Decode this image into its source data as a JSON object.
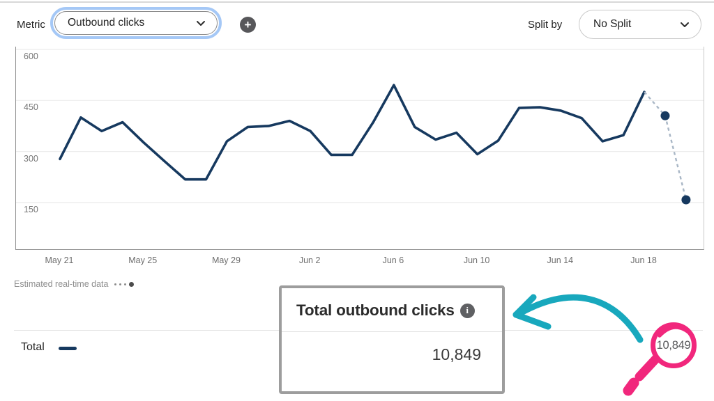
{
  "toolbar": {
    "metric_label": "Metric",
    "metric_dropdown": {
      "value": "Outbound clicks"
    },
    "add_metric_icon_glyph": "+",
    "split_by_label": "Split by",
    "split_dropdown": {
      "value": "No Split"
    }
  },
  "chart_data": {
    "type": "line",
    "x_tick_labels": [
      "May 21",
      "May 25",
      "May 29",
      "Jun 2",
      "Jun 6",
      "Jun 10",
      "Jun 14",
      "Jun 18"
    ],
    "y_ticks": [
      600,
      450,
      300,
      150
    ],
    "ylim": [
      0,
      600
    ],
    "grid": true,
    "legend_position": "bottom-left",
    "dates": [
      "May 21",
      "May 22",
      "May 23",
      "May 24",
      "May 25",
      "May 26",
      "May 27",
      "May 28",
      "May 29",
      "May 30",
      "May 31",
      "Jun 1",
      "Jun 2",
      "Jun 3",
      "Jun 4",
      "Jun 5",
      "Jun 6",
      "Jun 7",
      "Jun 8",
      "Jun 9",
      "Jun 10",
      "Jun 11",
      "Jun 12",
      "Jun 13",
      "Jun 14",
      "Jun 15",
      "Jun 16",
      "Jun 17",
      "Jun 18",
      "Jun 19",
      "Jun 20"
    ],
    "series": [
      {
        "name": "Total",
        "color": "#16395F",
        "style": "solid",
        "values": [
          278,
          400,
          360,
          386,
          327,
          272,
          218,
          218,
          330,
          372,
          375,
          390,
          360,
          290,
          290,
          385,
          495,
          372,
          335,
          355,
          292,
          332,
          428,
          430,
          420,
          398,
          330,
          348,
          475
        ]
      },
      {
        "name": "Estimated real-time data",
        "color": "#A9B7C6",
        "style": "dashed",
        "start_index": 28,
        "values": [
          475,
          405,
          158
        ]
      }
    ]
  },
  "estimated_legend": {
    "label": "Estimated real-time data"
  },
  "totals": {
    "label": "Total"
  },
  "callout": {
    "title": "Total outbound clicks",
    "info_icon_glyph": "i",
    "value": "10,849"
  },
  "magnifier": {
    "value": "10,849"
  },
  "colors": {
    "navy": "#16395F",
    "pink": "#F1277C",
    "teal": "#18A8BD",
    "focus_ring_blue": "#A5C8F6",
    "dashed_gray": "#A9B7C6"
  }
}
